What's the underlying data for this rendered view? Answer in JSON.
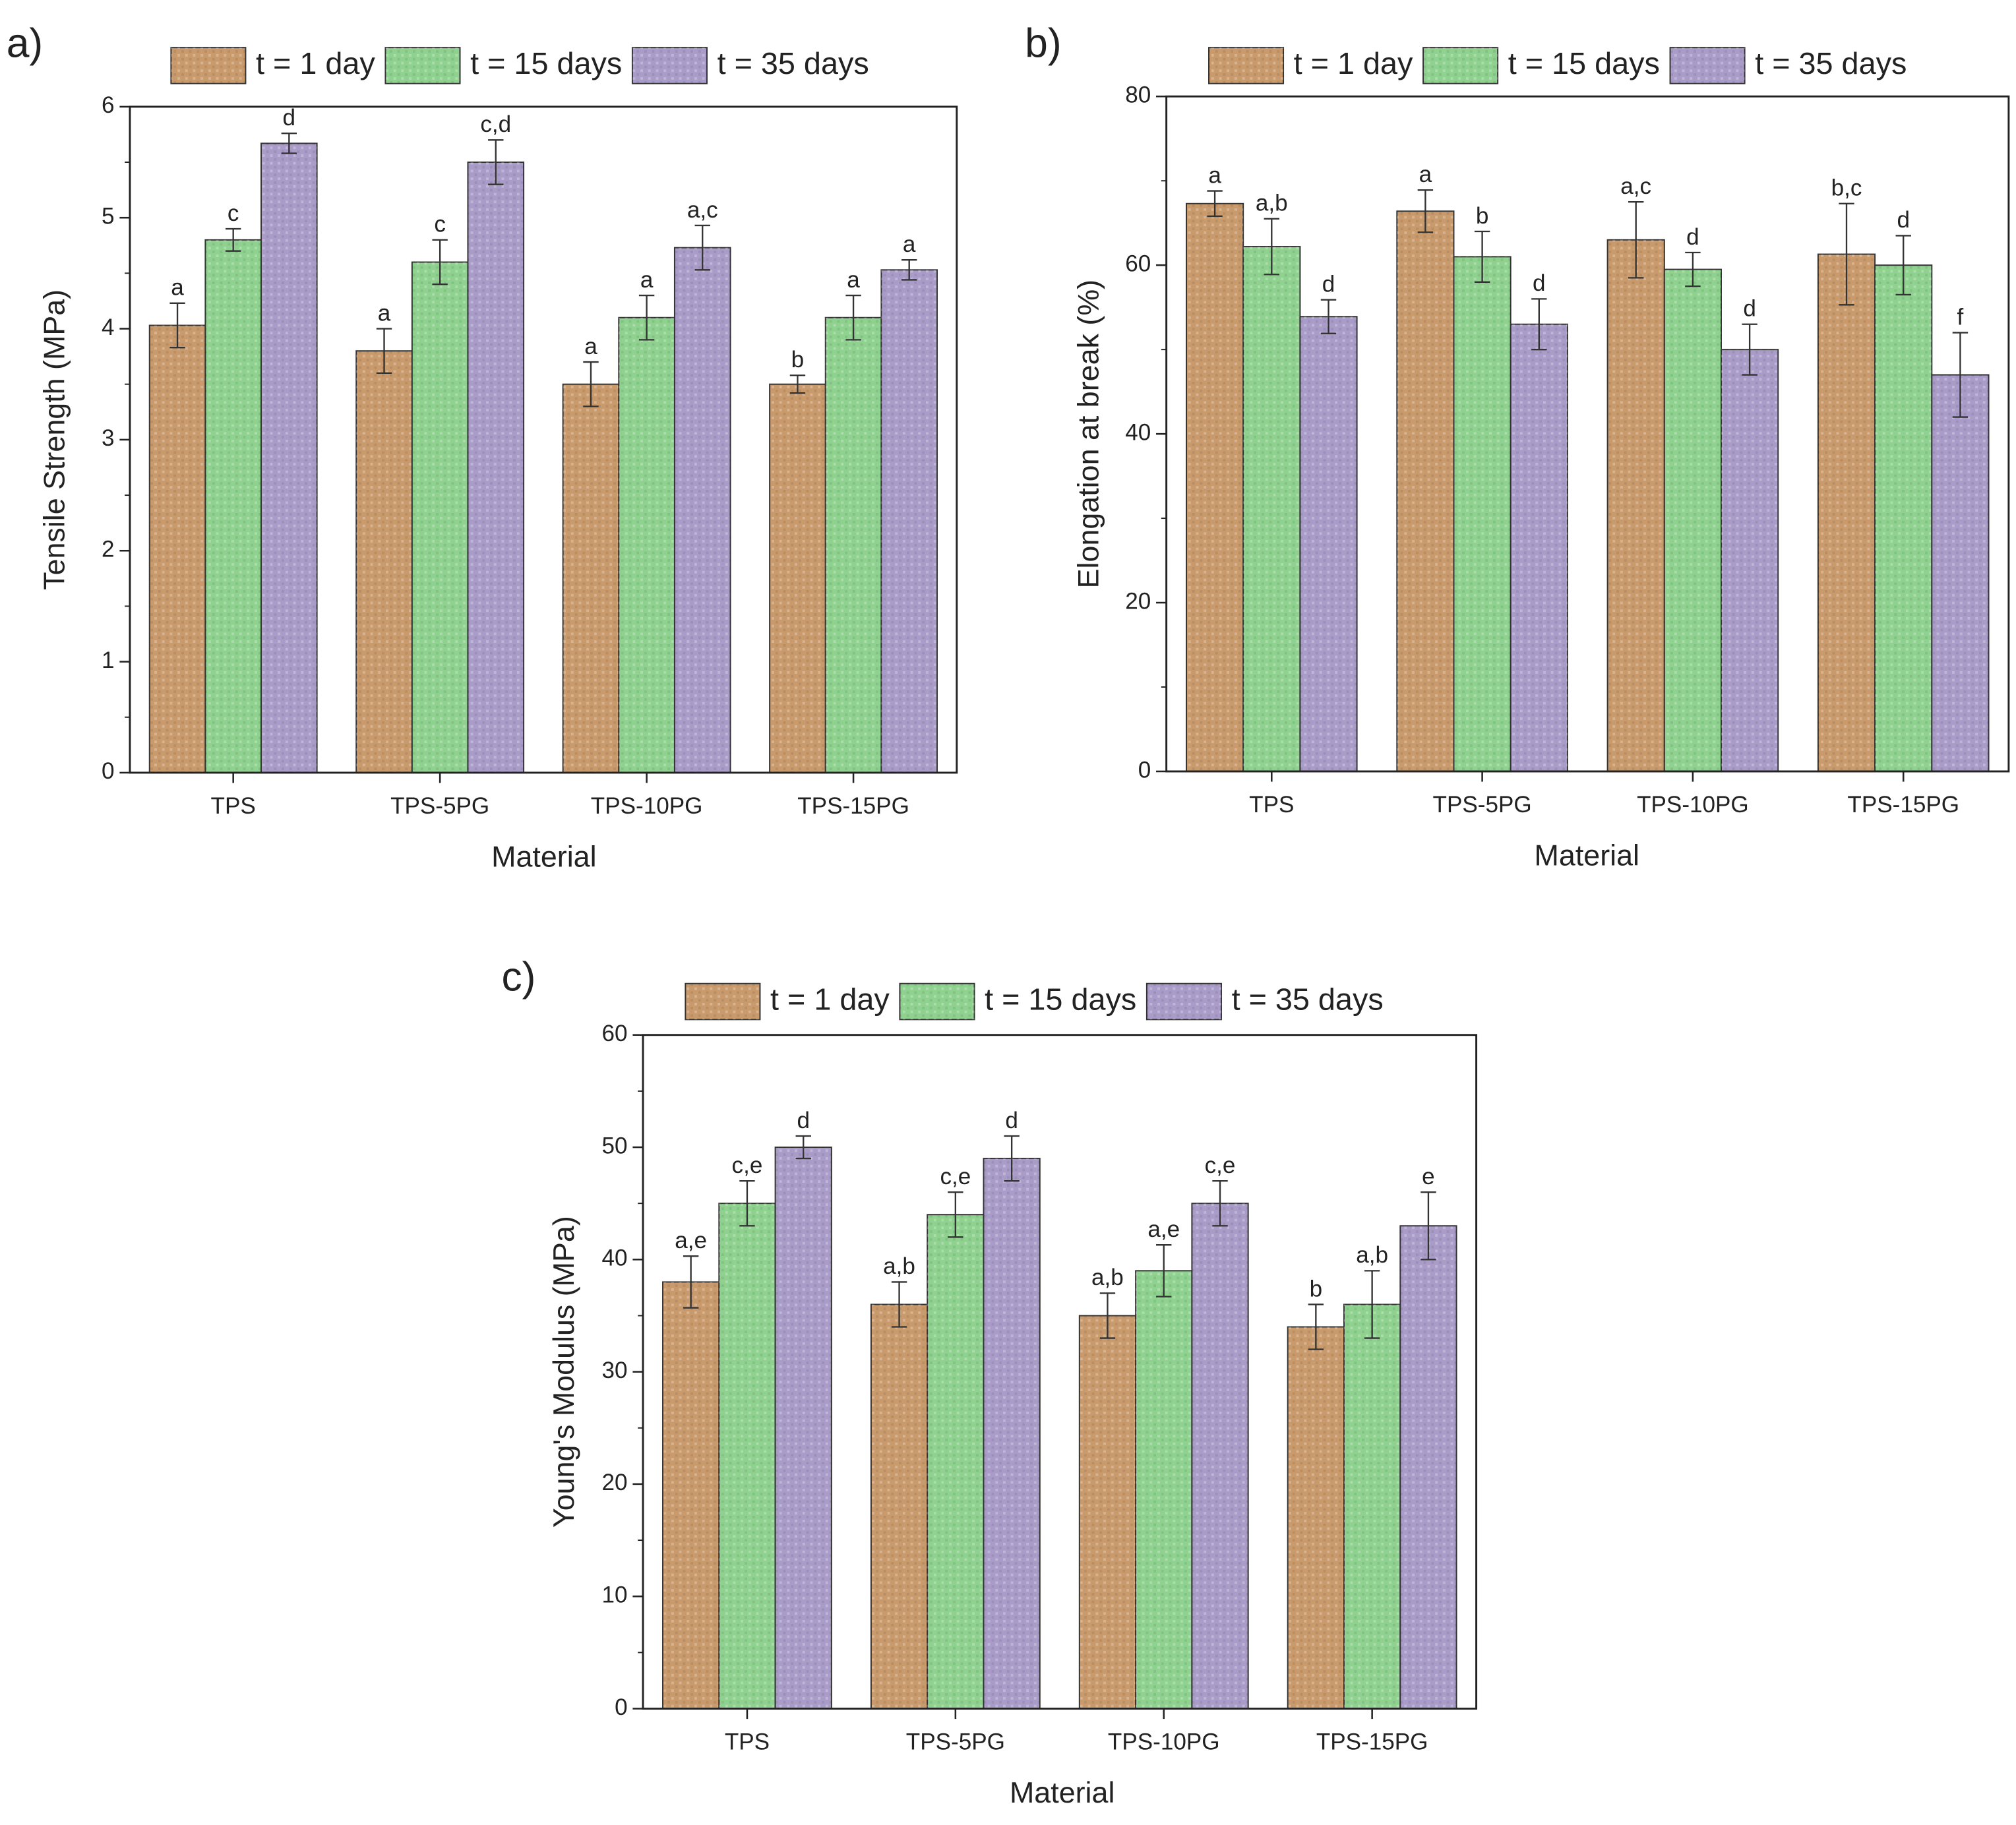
{
  "chart_data": [
    {
      "type": "bar",
      "panel_label": "a)",
      "xlabel": "Material",
      "ylabel": "Tensile Strength (MPa)",
      "categories": [
        "TPS",
        "TPS-5PG",
        "TPS-10PG",
        "TPS-15PG"
      ],
      "series": [
        {
          "name": "t = 1 day",
          "color": "#c99a6c",
          "values": [
            4.03,
            3.8,
            3.5,
            3.5
          ],
          "errors": [
            0.2,
            0.2,
            0.2,
            0.08
          ],
          "letters": [
            "a",
            "a",
            "a",
            "b"
          ]
        },
        {
          "name": "t = 15 days",
          "color": "#8fd18f",
          "values": [
            4.8,
            4.6,
            4.1,
            4.1
          ],
          "errors": [
            0.1,
            0.2,
            0.2,
            0.2
          ],
          "letters": [
            "c",
            "c",
            "a",
            "a"
          ]
        },
        {
          "name": "t = 35 days",
          "color": "#aa9cc8",
          "values": [
            5.67,
            5.5,
            4.73,
            4.53
          ],
          "errors": [
            0.09,
            0.2,
            0.2,
            0.09
          ],
          "letters": [
            "d",
            "c,d",
            "a,c",
            "a"
          ]
        }
      ],
      "ylim": [
        0,
        6
      ],
      "yticks": [
        0,
        1,
        2,
        3,
        4,
        5,
        6
      ]
    },
    {
      "type": "bar",
      "panel_label": "b)",
      "xlabel": "Material",
      "ylabel": "Elongation at break (%)",
      "categories": [
        "TPS",
        "TPS-5PG",
        "TPS-10PG",
        "TPS-15PG"
      ],
      "series": [
        {
          "name": "t = 1 day",
          "color": "#c99a6c",
          "values": [
            67.3,
            66.4,
            63,
            61.3
          ],
          "errors": [
            1.5,
            2.5,
            4.5,
            6
          ],
          "letters": [
            "a",
            "a",
            "a,c",
            "b,c"
          ]
        },
        {
          "name": "t = 15 days",
          "color": "#8fd18f",
          "values": [
            62.2,
            61,
            59.5,
            60
          ],
          "errors": [
            3.3,
            3,
            2,
            3.5
          ],
          "letters": [
            "a,b",
            "b",
            "d",
            "d"
          ]
        },
        {
          "name": "t = 35 days",
          "color": "#aa9cc8",
          "values": [
            53.9,
            53,
            50,
            47
          ],
          "errors": [
            2,
            3,
            3,
            5
          ],
          "letters": [
            "d",
            "d",
            "d",
            "f"
          ]
        }
      ],
      "ylim": [
        0,
        80
      ],
      "yticks": [
        0,
        20,
        40,
        60,
        80
      ]
    },
    {
      "type": "bar",
      "panel_label": "c)",
      "xlabel": "Material",
      "ylabel": "Young's Modulus (MPa)",
      "categories": [
        "TPS",
        "TPS-5PG",
        "TPS-10PG",
        "TPS-15PG"
      ],
      "series": [
        {
          "name": "t = 1 day",
          "color": "#c99a6c",
          "values": [
            38,
            36,
            35,
            34
          ],
          "errors": [
            2.3,
            2,
            2,
            2
          ],
          "letters": [
            "a,e",
            "a,b",
            "a,b",
            "b"
          ]
        },
        {
          "name": "t = 15 days",
          "color": "#8fd18f",
          "values": [
            45,
            44,
            39,
            36
          ],
          "errors": [
            2,
            2,
            2.3,
            3
          ],
          "letters": [
            "c,e",
            "c,e",
            "a,e",
            "a,b"
          ]
        },
        {
          "name": "t = 35 days",
          "color": "#aa9cc8",
          "values": [
            50,
            49,
            45,
            43
          ],
          "errors": [
            1,
            2,
            2,
            3
          ],
          "letters": [
            "d",
            "d",
            "c,e",
            "e"
          ]
        }
      ],
      "ylim": [
        0,
        60
      ],
      "yticks": [
        0,
        10,
        20,
        30,
        40,
        50,
        60
      ]
    }
  ]
}
